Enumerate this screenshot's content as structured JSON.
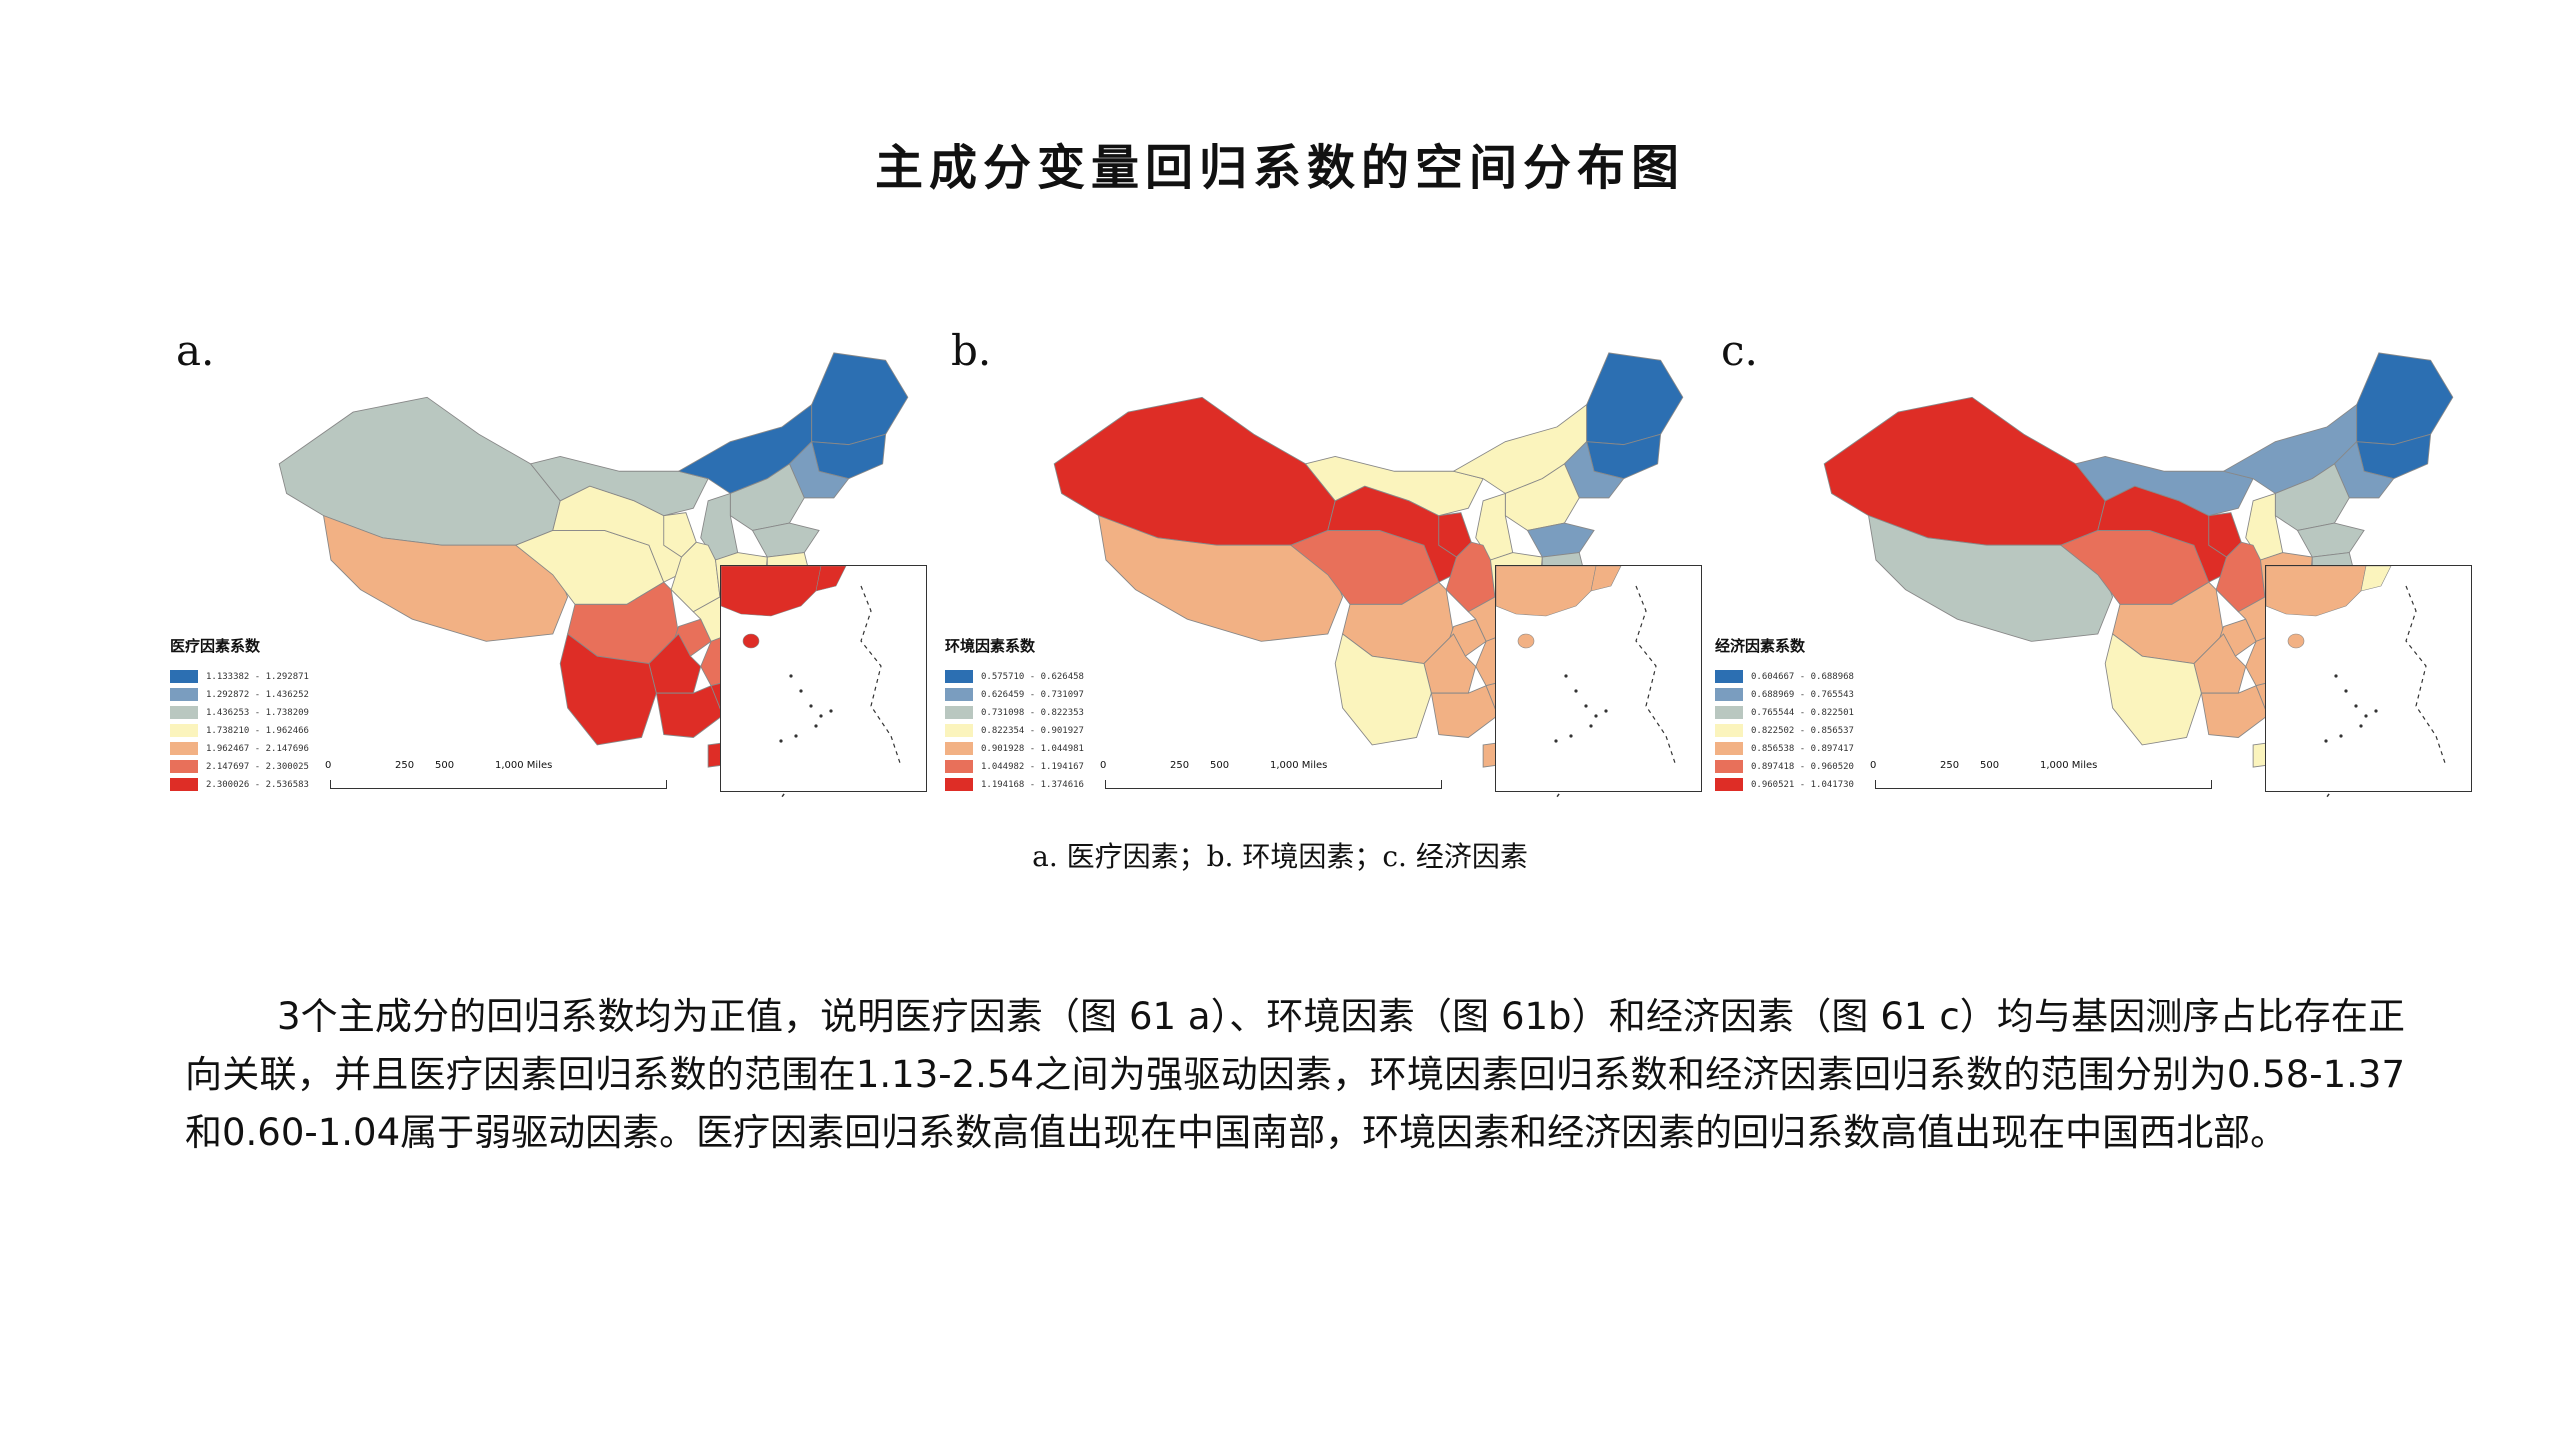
{
  "title": "主成分变量回归系数的空间分布图",
  "panels": [
    {
      "label": "a.",
      "legend_title": "医疗因素系数",
      "legend": [
        {
          "range": "1.133382 - 1.292871",
          "color": "#2c6fb2"
        },
        {
          "range": "1.292872 - 1.436252",
          "color": "#7a9dbf"
        },
        {
          "range": "1.436253 - 1.738209",
          "color": "#b9c7c0"
        },
        {
          "range": "1.738210 - 1.962466",
          "color": "#fbf4bd"
        },
        {
          "range": "1.962467 - 2.147696",
          "color": "#f2b184"
        },
        {
          "range": "2.147697 - 2.300025",
          "color": "#e8705a"
        },
        {
          "range": "2.300026 - 2.536583",
          "color": "#de2d26"
        }
      ],
      "regions": {
        "xinjiang": "#b9c7c0",
        "tibet": "#f2b184",
        "qinghai": "#fbf4bd",
        "gansu": "#fbf4bd",
        "inner_mongolia_w": "#b9c7c0",
        "inner_mongolia_e": "#2c6fb2",
        "heilongjiang": "#2c6fb2",
        "jilin": "#2c6fb2",
        "liaoning": "#7a9dbf",
        "hebei": "#b9c7c0",
        "shandong": "#b9c7c0",
        "shanxi": "#b9c7c0",
        "shaanxi": "#fbf4bd",
        "henan": "#fbf4bd",
        "jiangsu": "#fbf4bd",
        "sichuan": "#e8705a",
        "chongqing": "#e8705a",
        "hubei": "#fbf4bd",
        "anhui": "#fbf4bd",
        "zhejiang": "#fbf4bd",
        "hunan": "#e8705a",
        "jiangxi": "#e8705a",
        "fujian": "#f2b184",
        "yunnan": "#de2d26",
        "guizhou": "#de2d26",
        "guangxi": "#de2d26",
        "guangdong": "#de2d26",
        "hainan": "#de2d26",
        "taiwan": "#ffffff",
        "ningxia": "#fbf4bd"
      },
      "inset_colors": {
        "main": "#de2d26",
        "second": "#de2d26"
      }
    },
    {
      "label": "b.",
      "legend_title": "环境因素系数",
      "legend": [
        {
          "range": "0.575710 - 0.626458",
          "color": "#2c6fb2"
        },
        {
          "range": "0.626459 - 0.731097",
          "color": "#7a9dbf"
        },
        {
          "range": "0.731098 - 0.822353",
          "color": "#b9c7c0"
        },
        {
          "range": "0.822354 - 0.901927",
          "color": "#fbf4bd"
        },
        {
          "range": "0.901928 - 1.044981",
          "color": "#f2b184"
        },
        {
          "range": "1.044982 - 1.194167",
          "color": "#e8705a"
        },
        {
          "range": "1.194168 - 1.374616",
          "color": "#de2d26"
        }
      ],
      "regions": {
        "xinjiang": "#de2d26",
        "tibet": "#f2b184",
        "qinghai": "#e8705a",
        "gansu": "#de2d26",
        "inner_mongolia_w": "#fbf4bd",
        "inner_mongolia_e": "#fbf4bd",
        "heilongjiang": "#2c6fb2",
        "jilin": "#2c6fb2",
        "liaoning": "#7a9dbf",
        "hebei": "#fbf4bd",
        "shandong": "#7a9dbf",
        "shanxi": "#fbf4bd",
        "shaanxi": "#e8705a",
        "henan": "#fbf4bd",
        "jiangsu": "#b9c7c0",
        "sichuan": "#f2b184",
        "chongqing": "#f2b184",
        "hubei": "#f2b184",
        "anhui": "#fbf4bd",
        "zhejiang": "#fbf4bd",
        "hunan": "#f2b184",
        "jiangxi": "#f2b184",
        "fujian": "#fbf4bd",
        "yunnan": "#fbf4bd",
        "guizhou": "#f2b184",
        "guangxi": "#f2b184",
        "guangdong": "#f2b184",
        "hainan": "#f2b184",
        "taiwan": "#ffffff",
        "ningxia": "#de2d26"
      },
      "inset_colors": {
        "main": "#f2b184",
        "second": "#f2b184"
      }
    },
    {
      "label": "c.",
      "legend_title": "经济因素系数",
      "legend": [
        {
          "range": "0.604667 - 0.688968",
          "color": "#2c6fb2"
        },
        {
          "range": "0.688969 - 0.765543",
          "color": "#7a9dbf"
        },
        {
          "range": "0.765544 - 0.822501",
          "color": "#b9c7c0"
        },
        {
          "range": "0.822502 - 0.856537",
          "color": "#fbf4bd"
        },
        {
          "range": "0.856538 - 0.897417",
          "color": "#f2b184"
        },
        {
          "range": "0.897418 - 0.960520",
          "color": "#e8705a"
        },
        {
          "range": "0.960521 - 1.041730",
          "color": "#de2d26"
        }
      ],
      "regions": {
        "xinjiang": "#de2d26",
        "tibet": "#b9c7c0",
        "qinghai": "#e8705a",
        "gansu": "#de2d26",
        "inner_mongolia_w": "#7a9dbf",
        "inner_mongolia_e": "#7a9dbf",
        "heilongjiang": "#2c6fb2",
        "jilin": "#2c6fb2",
        "liaoning": "#7a9dbf",
        "hebei": "#b9c7c0",
        "shandong": "#b9c7c0",
        "shanxi": "#fbf4bd",
        "shaanxi": "#e8705a",
        "henan": "#f2b184",
        "jiangsu": "#b9c7c0",
        "sichuan": "#f2b184",
        "chongqing": "#f2b184",
        "hubei": "#f2b184",
        "anhui": "#fbf4bd",
        "zhejiang": "#b9c7c0",
        "hunan": "#f2b184",
        "jiangxi": "#f2b184",
        "fujian": "#b9c7c0",
        "yunnan": "#fbf4bd",
        "guizhou": "#f2b184",
        "guangxi": "#f2b184",
        "guangdong": "#f2b184",
        "hainan": "#fbf4bd",
        "taiwan": "#ffffff",
        "ningxia": "#de2d26"
      },
      "inset_colors": {
        "main": "#f2b184",
        "second": "#fbf4bd"
      }
    }
  ],
  "scale": {
    "ticks": [
      "0",
      "250",
      "500",
      "1,000 Miles"
    ]
  },
  "caption": "a. 医疗因素；b. 环境因素；c. 经济因素",
  "paragraph": "3个主成分的回归系数均为正值，说明医疗因素（图 61 a）、环境因素（图 61b）和经济因素（图 61 c）均与基因测序占比存在正向关联，并且医疗因素回归系数的范围在1.13-2.54之间为强驱动因素，环境因素回归系数和经济因素回归系数的范围分别为0.58-1.37和0.60-1.04属于弱驱动因素。医疗因素回归系数高值出现在中国南部，环境因素和经济因素的回归系数高值出现在中国西北部。"
}
